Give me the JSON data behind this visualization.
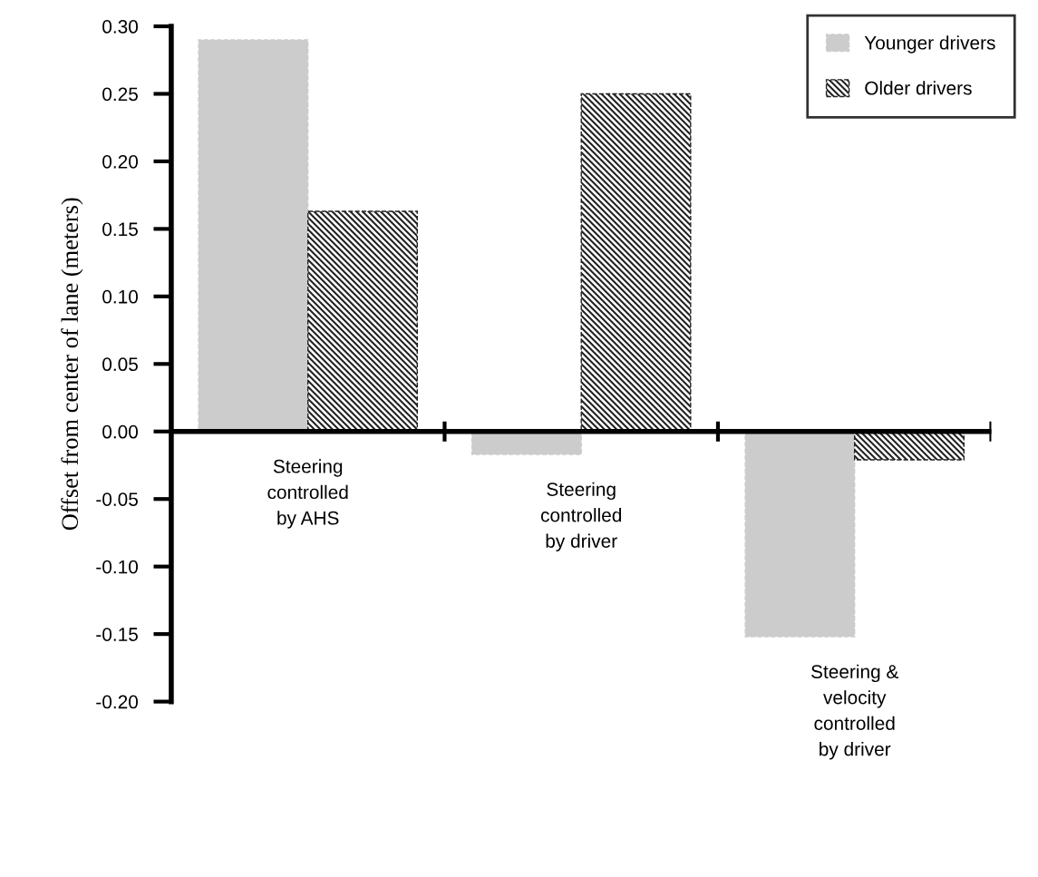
{
  "chart_data": {
    "type": "bar",
    "ylabel": "Offset from center of lane (meters)",
    "categories": [
      "Steering\ncontrolled\nby AHS",
      "Steering\ncontrolled\nby driver",
      "Steering &\nvelocity\ncontrolled\nby driver"
    ],
    "series": [
      {
        "name": "Younger drivers",
        "color": "#cccccc",
        "values": [
          0.29,
          -0.017,
          -0.152
        ]
      },
      {
        "name": "Older drivers",
        "color": "#222222",
        "values": [
          0.163,
          0.25,
          -0.021
        ]
      }
    ],
    "ylim": [
      -0.2,
      0.3
    ],
    "yticks": [
      {
        "value": -0.2,
        "label": "-0.20"
      },
      {
        "value": -0.15,
        "label": "-0.15"
      },
      {
        "value": -0.1,
        "label": "-0.10"
      },
      {
        "value": -0.05,
        "label": "-0.05"
      },
      {
        "value": 0,
        "label": "0.00"
      },
      {
        "value": 0.05,
        "label": "0.05"
      },
      {
        "value": 0.1,
        "label": "0.10"
      },
      {
        "value": 0.15,
        "label": "0.15"
      },
      {
        "value": 0.2,
        "label": "0.20"
      },
      {
        "value": 0.25,
        "label": "0.25"
      },
      {
        "value": 0.3,
        "label": "0.30"
      }
    ],
    "grid": false,
    "ref_lines": [
      {
        "axis": "y",
        "value": 0,
        "color": "#000000"
      }
    ],
    "legend": "top right"
  }
}
